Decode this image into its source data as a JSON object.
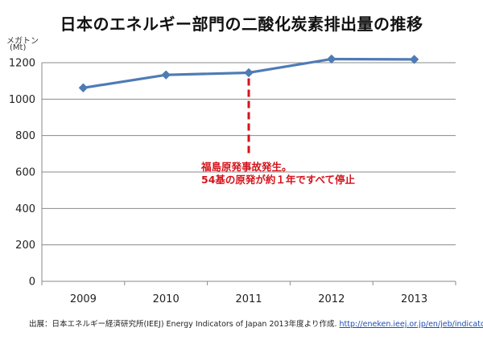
{
  "title": "日本のエネルギー部門の二酸化炭素排出量の推移",
  "unit": {
    "line1": "メガトン",
    "line2": "(Mt)"
  },
  "annotation": {
    "line1": "福島原発事故発生。",
    "line2": "54基の原発が約１年ですべて停止",
    "x_category": "2011",
    "color": "#d4121a"
  },
  "footer": {
    "text": "出展：日本エネルギー経済研究所(IEEJ)  Energy Indicators of Japan 2013年度より作成. ",
    "link": "http://eneken.ieej.or.jp/en/jeb/indicators.pdf"
  },
  "chart_data": {
    "type": "line",
    "title": "日本のエネルギー部門の二酸化炭素排出量の推移",
    "ylabel": "メガトン (Mt)",
    "xlabel": "",
    "categories": [
      "2009",
      "2010",
      "2011",
      "2012",
      "2013"
    ],
    "series": [
      {
        "values": [
          1062,
          1133,
          1145,
          1220,
          1218
        ]
      }
    ],
    "ylim": [
      0,
      1200
    ],
    "yticks": [
      0,
      200,
      400,
      600,
      800,
      1000,
      1200
    ],
    "grid": true,
    "line_color": "#4f7bb5"
  }
}
